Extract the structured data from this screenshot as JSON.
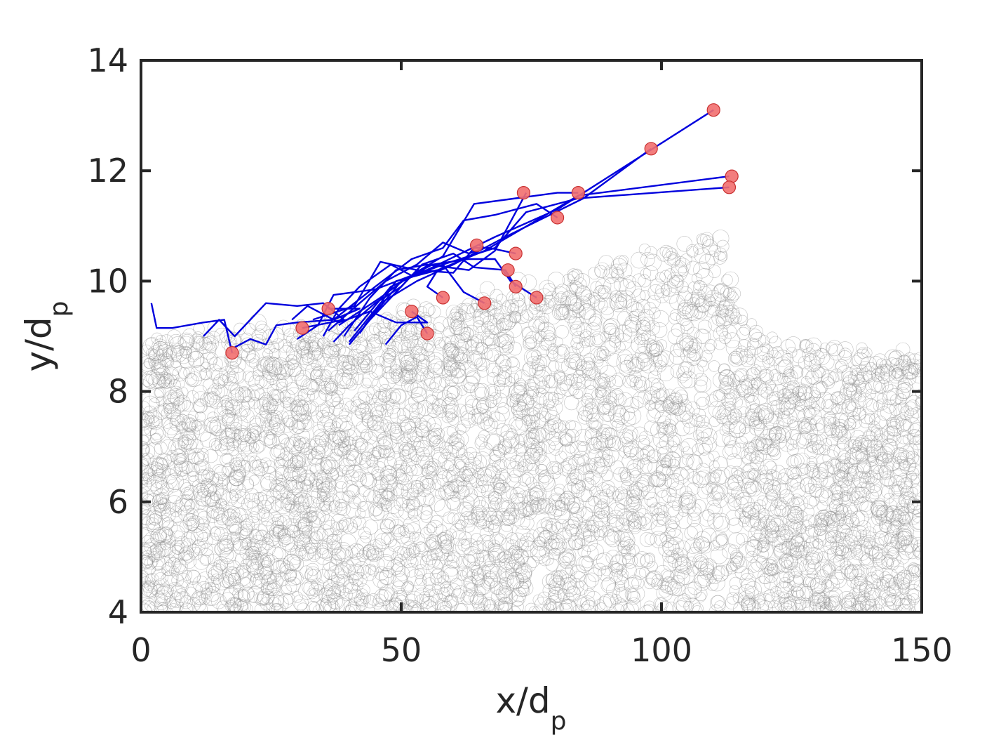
{
  "chart_data": {
    "type": "scatter",
    "xlabel": {
      "main": "x/d",
      "sub": "p"
    },
    "ylabel": {
      "main": "y/d",
      "sub": "p"
    },
    "xlim": [
      0,
      150
    ],
    "ylim": [
      4,
      14
    ],
    "xticks": [
      0,
      50,
      100,
      150
    ],
    "yticks": [
      4,
      6,
      8,
      10,
      12,
      14
    ],
    "grid": false,
    "colors": {
      "background_particles": "#8c8c8c",
      "trajectories": "#0000dd",
      "endpoint_fill": "#f26f6f",
      "endpoint_edge": "#c83232",
      "axes": "#262626"
    },
    "bed_surface_profile": [
      [
        0,
        8.9
      ],
      [
        10,
        9.0
      ],
      [
        20,
        9.1
      ],
      [
        30,
        9.2
      ],
      [
        40,
        9.3
      ],
      [
        50,
        9.4
      ],
      [
        60,
        9.6
      ],
      [
        70,
        9.8
      ],
      [
        80,
        10.0
      ],
      [
        90,
        10.3
      ],
      [
        100,
        10.6
      ],
      [
        110,
        10.8
      ],
      [
        113,
        10.5
      ],
      [
        115,
        9.8
      ],
      [
        117,
        9.2
      ],
      [
        120,
        8.9
      ],
      [
        130,
        8.8
      ],
      [
        140,
        8.7
      ],
      [
        150,
        8.6
      ]
    ],
    "trajectories": [
      {
        "points": [
          [
            2,
            9.6
          ],
          [
            3,
            9.15
          ],
          [
            6,
            9.15
          ],
          [
            12,
            9.25
          ],
          [
            16,
            9.3
          ],
          [
            17.5,
            8.7
          ]
        ]
      },
      {
        "points": [
          [
            12,
            9.0
          ],
          [
            15,
            9.3
          ],
          [
            18,
            9.0
          ],
          [
            24,
            9.6
          ],
          [
            30,
            9.55
          ],
          [
            35,
            9.6
          ],
          [
            39,
            9.3
          ],
          [
            31,
            9.15
          ]
        ]
      },
      {
        "points": [
          [
            18,
            8.8
          ],
          [
            21,
            8.95
          ],
          [
            24,
            8.85
          ],
          [
            26,
            9.2
          ],
          [
            30,
            9.25
          ],
          [
            37,
            9.3
          ],
          [
            42,
            9.5
          ],
          [
            36,
            9.5
          ]
        ]
      },
      {
        "points": [
          [
            29,
            9.3
          ],
          [
            32,
            9.55
          ],
          [
            38,
            9.25
          ],
          [
            44,
            9.45
          ],
          [
            49,
            9.25
          ],
          [
            55,
            9.25
          ],
          [
            52,
            9.45
          ]
        ]
      },
      {
        "points": [
          [
            47,
            8.85
          ],
          [
            50,
            9.2
          ],
          [
            53,
            9.35
          ],
          [
            55,
            9.05
          ]
        ]
      },
      {
        "points": [
          [
            30,
            8.95
          ],
          [
            34,
            9.2
          ],
          [
            37,
            9.75
          ],
          [
            45,
            9.85
          ],
          [
            52,
            10.1
          ],
          [
            57,
            10.2
          ],
          [
            55,
            9.9
          ],
          [
            58,
            9.7
          ]
        ]
      },
      {
        "points": [
          [
            35,
            9.0
          ],
          [
            38,
            9.5
          ],
          [
            42,
            9.9
          ],
          [
            48,
            10.3
          ],
          [
            52,
            10.1
          ],
          [
            58,
            10.3
          ],
          [
            62,
            9.8
          ],
          [
            66,
            9.6
          ]
        ]
      },
      {
        "points": [
          [
            37,
            8.9
          ],
          [
            40,
            9.2
          ],
          [
            45,
            9.6
          ],
          [
            50,
            9.9
          ],
          [
            54,
            10.3
          ],
          [
            60,
            10.5
          ],
          [
            64,
            10.25
          ],
          [
            70,
            10.2
          ],
          [
            72,
            9.9
          ]
        ]
      },
      {
        "points": [
          [
            40,
            8.85
          ],
          [
            44,
            9.3
          ],
          [
            48,
            9.7
          ],
          [
            52,
            10.1
          ],
          [
            56,
            10.3
          ],
          [
            63,
            10.4
          ],
          [
            68,
            10.4
          ],
          [
            71,
            10.0
          ],
          [
            76,
            9.7
          ]
        ]
      },
      {
        "points": [
          [
            33,
            9.3
          ],
          [
            41,
            9.55
          ],
          [
            46,
            10.35
          ],
          [
            53,
            10.2
          ],
          [
            60,
            10.15
          ],
          [
            64,
            10.6
          ],
          [
            67,
            10.6
          ],
          [
            72,
            10.5
          ]
        ]
      },
      {
        "points": [
          [
            36,
            9.1
          ],
          [
            42,
            9.6
          ],
          [
            47,
            10.0
          ],
          [
            53,
            10.3
          ],
          [
            58,
            10.7
          ],
          [
            63,
            10.5
          ],
          [
            66,
            10.6
          ],
          [
            65,
            10.65
          ]
        ]
      },
      {
        "points": [
          [
            37,
            9.3
          ],
          [
            45,
            9.9
          ],
          [
            52,
            10.4
          ],
          [
            58,
            10.6
          ],
          [
            62,
            11.1
          ],
          [
            68,
            11.2
          ],
          [
            76,
            11.4
          ],
          [
            80,
            11.15
          ]
        ]
      },
      {
        "points": [
          [
            38,
            9.2
          ],
          [
            46,
            9.7
          ],
          [
            51,
            10.05
          ],
          [
            58,
            10.45
          ],
          [
            64,
            11.4
          ],
          [
            72,
            11.5
          ],
          [
            80,
            11.6
          ],
          [
            84,
            11.6
          ]
        ]
      },
      {
        "points": [
          [
            39,
            9.0
          ],
          [
            44,
            9.7
          ],
          [
            49,
            10.2
          ],
          [
            55,
            10.3
          ],
          [
            63,
            10.2
          ],
          [
            68,
            10.55
          ],
          [
            74,
            11.6
          ]
        ]
      },
      {
        "points": [
          [
            40,
            8.9
          ],
          [
            46,
            9.6
          ],
          [
            53,
            10.0
          ],
          [
            60,
            10.3
          ],
          [
            70,
            10.8
          ],
          [
            85,
            11.5
          ],
          [
            98,
            12.4
          ]
        ]
      },
      {
        "points": [
          [
            41,
            9.1
          ],
          [
            48,
            9.9
          ],
          [
            56,
            10.25
          ],
          [
            68,
            10.8
          ],
          [
            80,
            11.3
          ],
          [
            110,
            13.1
          ]
        ]
      },
      {
        "points": [
          [
            42,
            9.05
          ],
          [
            49,
            10.0
          ],
          [
            57,
            10.2
          ],
          [
            66,
            10.55
          ],
          [
            76,
            11.1
          ],
          [
            84,
            11.55
          ],
          [
            113,
            11.9
          ]
        ]
      },
      {
        "points": [
          [
            43,
            9.2
          ],
          [
            50,
            10.0
          ],
          [
            58,
            10.3
          ],
          [
            68,
            10.6
          ],
          [
            74,
            11.25
          ],
          [
            84,
            11.5
          ],
          [
            113,
            11.7
          ]
        ]
      }
    ],
    "endpoints": [
      [
        17.5,
        8.7
      ],
      [
        31,
        9.15
      ],
      [
        36,
        9.5
      ],
      [
        52,
        9.45
      ],
      [
        55,
        9.05
      ],
      [
        58,
        9.7
      ],
      [
        66,
        9.6
      ],
      [
        72,
        9.9
      ],
      [
        76,
        9.7
      ],
      [
        70.5,
        10.2
      ],
      [
        72,
        10.5
      ],
      [
        64.5,
        10.65
      ],
      [
        80,
        11.15
      ],
      [
        84,
        11.6
      ],
      [
        73.5,
        11.6
      ],
      [
        98,
        12.4
      ],
      [
        110,
        13.1
      ],
      [
        113.5,
        11.9
      ],
      [
        113,
        11.7
      ]
    ]
  }
}
